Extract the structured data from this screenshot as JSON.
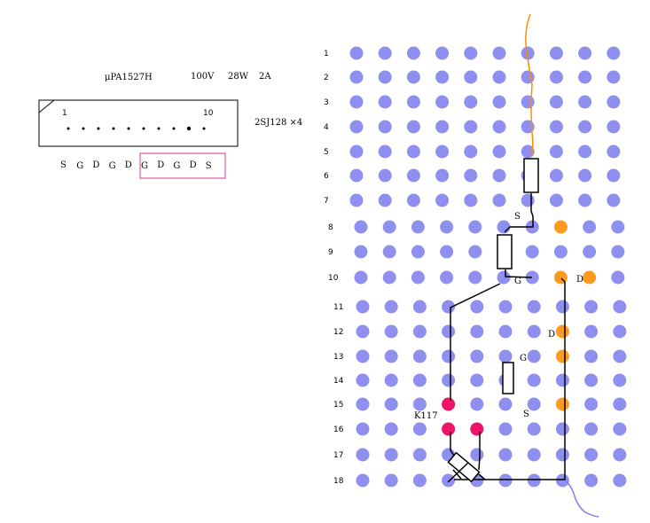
{
  "part": {
    "title": "μPA1527H",
    "voltage": "100V",
    "power": "28W",
    "current": "2A",
    "pin_first": "1",
    "pin_last": "10",
    "pin_names": [
      "S",
      "G",
      "D",
      "G",
      "D",
      "G",
      "D",
      "G",
      "D",
      "S"
    ],
    "transistor": "2SJ128 ×4"
  },
  "board": {
    "row_labels": [
      "1",
      "2",
      "3",
      "4",
      "5",
      "6",
      "7",
      "8",
      "9",
      "10",
      "11",
      "12",
      "13",
      "14",
      "15",
      "16",
      "17",
      "18"
    ],
    "colors": {
      "hole": "#8f8ff0",
      "fet_pin": "#ff9a1f",
      "diode_pin": "#f0136b",
      "wire_in": "#ff8c00",
      "wire_out": "#8080f0",
      "highlight_box": "#d63a8c"
    }
  },
  "annotations": {
    "s_top": "S",
    "g_top": "G",
    "d_top": "D",
    "d_mid": "D",
    "g_mid": "G",
    "s_mid": "S",
    "diode": "K117"
  }
}
